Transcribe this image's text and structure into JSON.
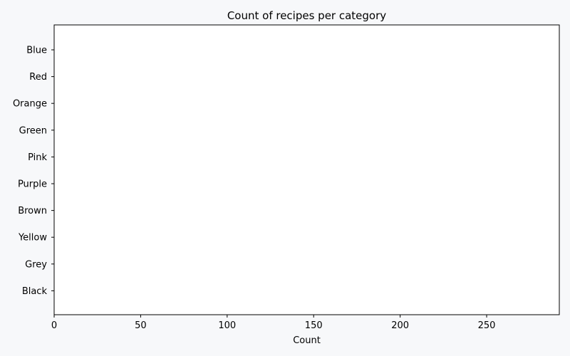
{
  "chart_data": {
    "type": "bar",
    "orientation": "horizontal",
    "title": "Count of recipes per category",
    "xlabel": "Count",
    "ylabel": "",
    "categories": [
      "Blue",
      "Red",
      "Orange",
      "Green",
      "Pink",
      "Purple",
      "Brown",
      "Yellow",
      "Grey",
      "Black"
    ],
    "values": [
      0,
      0,
      0,
      0,
      0,
      0,
      0,
      0,
      0,
      0
    ],
    "xlim": [
      0,
      292
    ],
    "xticks": [
      0,
      50,
      100,
      150,
      200,
      250
    ],
    "grid": false,
    "colors": {
      "background": "#f7f8fa",
      "plot_background": "#ffffff",
      "axis": "#000000",
      "bar": "#4c72b0"
    }
  }
}
